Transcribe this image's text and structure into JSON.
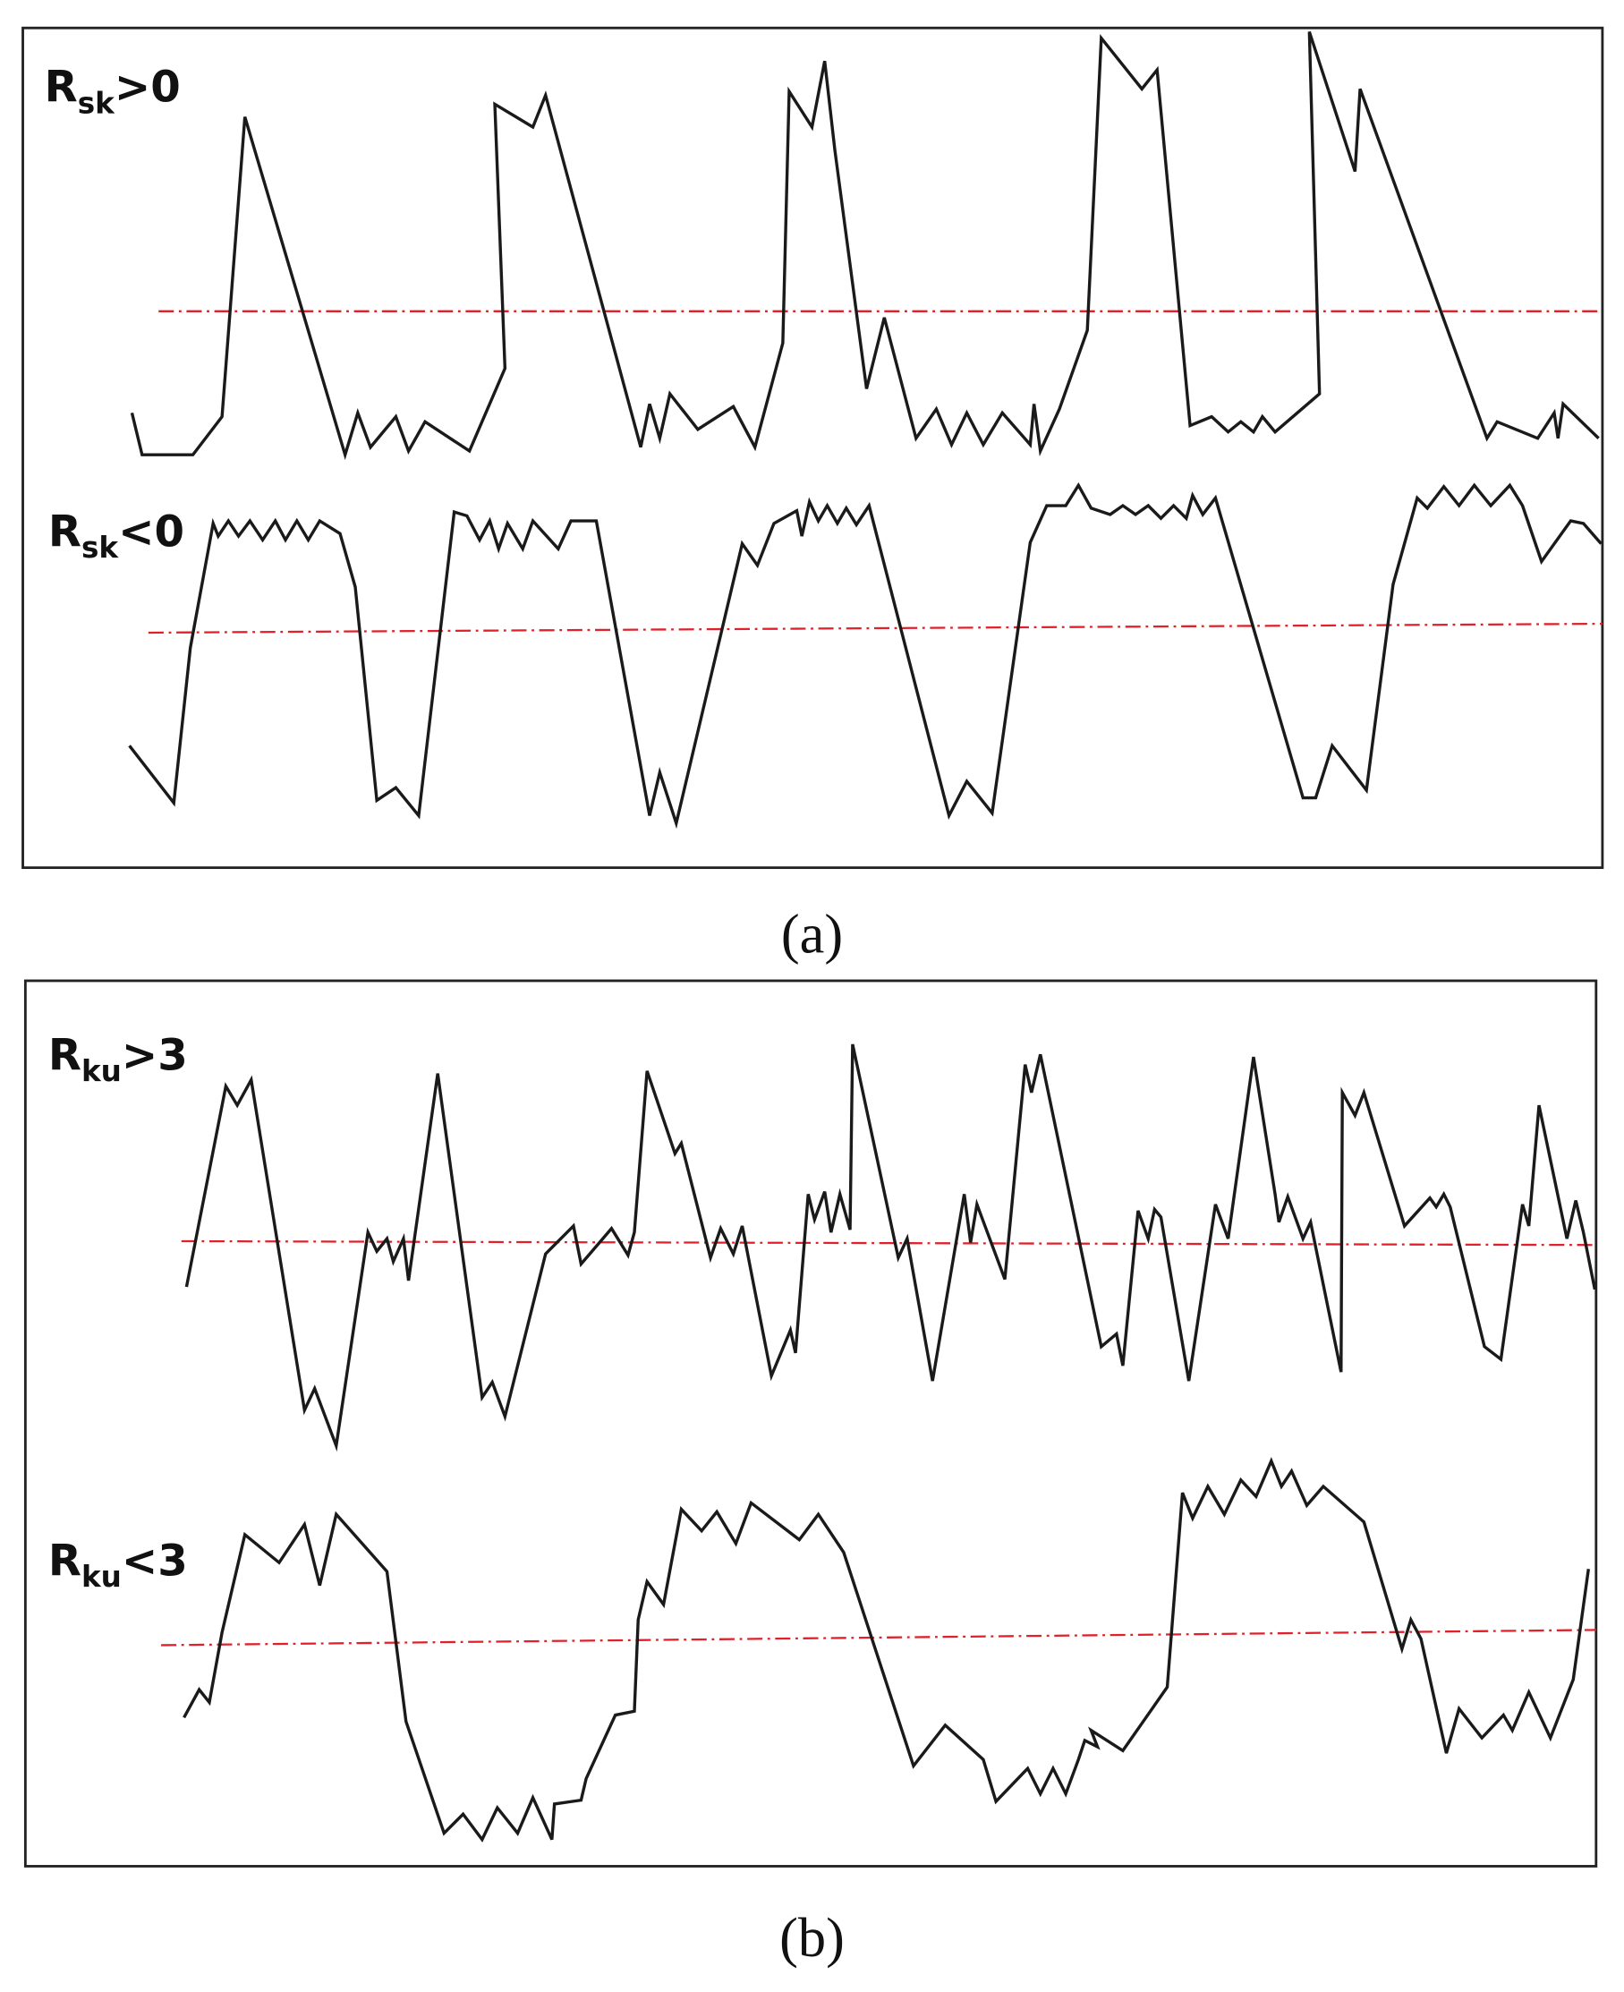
{
  "panels": [
    {
      "caption": "(a)",
      "profiles": [
        {
          "symbol": "R",
          "subscript": "sk",
          "condition": ">0"
        },
        {
          "symbol": "R",
          "subscript": "sk",
          "condition": "<0"
        }
      ]
    },
    {
      "caption": "(b)",
      "profiles": [
        {
          "symbol": "R",
          "subscript": "ku",
          "condition": ">3"
        },
        {
          "symbol": "R",
          "subscript": "ku",
          "condition": "<3"
        }
      ]
    }
  ]
}
